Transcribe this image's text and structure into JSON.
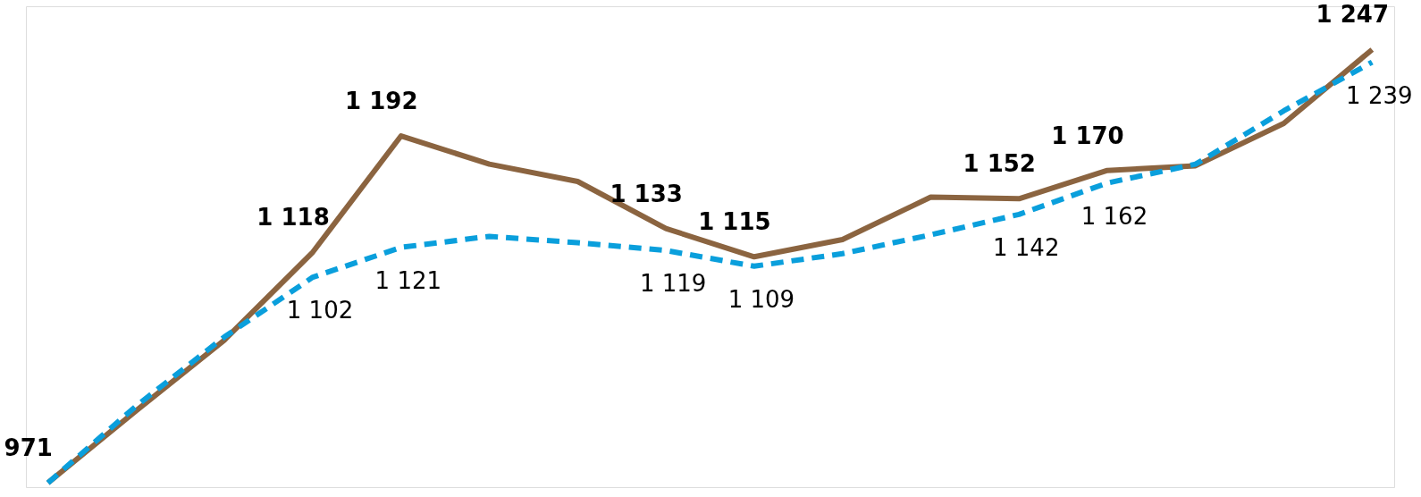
{
  "chart_data": {
    "type": "line",
    "categories": [
      null,
      null,
      null,
      null,
      null,
      null,
      null,
      null,
      null,
      null,
      null,
      null,
      null,
      null,
      null,
      null
    ],
    "marker": "none",
    "series": [
      {
        "color": "#8b6440",
        "line_style": "solid",
        "values": [
          971,
          1017,
          1062,
          1118,
          1192,
          1174,
          1163,
          1133,
          1115,
          1126,
          1153,
          1152,
          1170,
          1173,
          1200,
          1247
        ],
        "value_labels": [
          "971",
          null,
          null,
          "1 118",
          "1 192",
          null,
          null,
          "1 133",
          "1 115",
          null,
          null,
          "1 152",
          "1 170",
          null,
          null,
          "1 247"
        ]
      },
      {
        "color": "#0a9fdc",
        "line_style": "dashed",
        "values": [
          971,
          1020,
          1064,
          1102,
          1121,
          1128,
          1124,
          1119,
          1109,
          1117,
          1129,
          1142,
          1162,
          1174,
          1208,
          1239
        ],
        "value_labels": [
          null,
          null,
          null,
          "1 102",
          "1 121",
          null,
          null,
          "1 119",
          "1 109",
          null,
          null,
          "1 142",
          "1 162",
          null,
          null,
          "1 239"
        ]
      }
    ]
  }
}
